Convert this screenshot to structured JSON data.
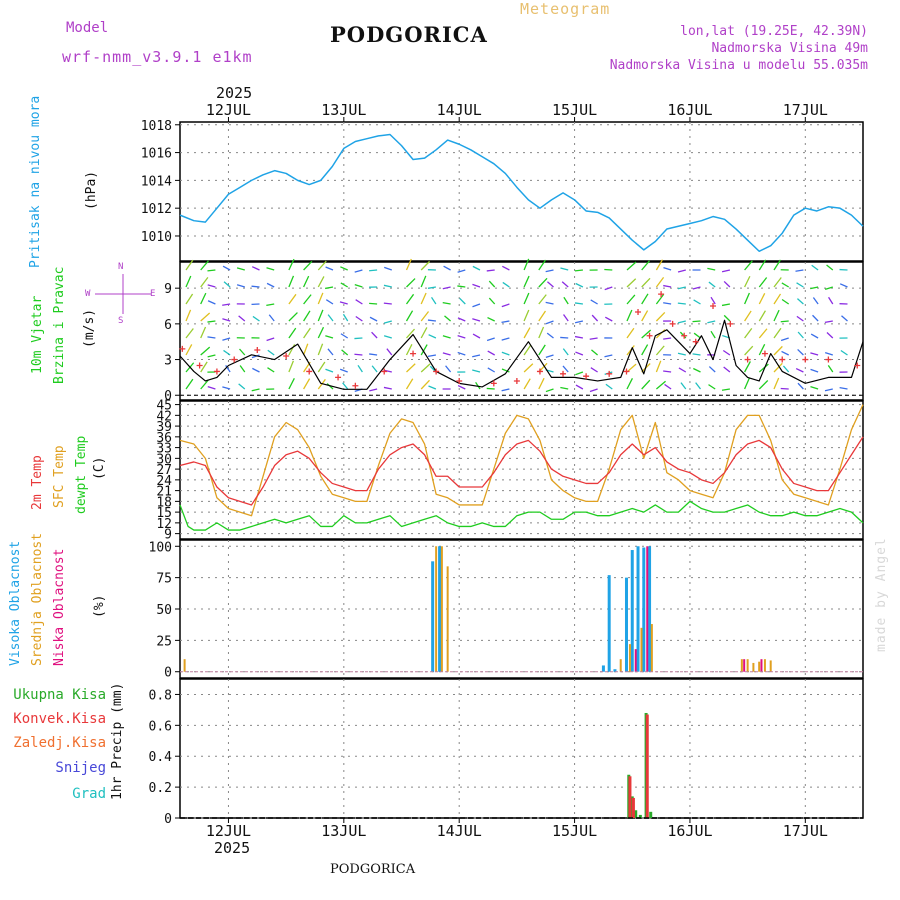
{
  "header": {
    "model_label": "Model",
    "model_name": "wrf-nmm_v3.9.1 e1km",
    "title": "PODGORICA",
    "meteogram": "Meteogram",
    "lonlat": "lon,lat (19.25E, 42.39N)",
    "elevation": "Nadmorska Visina 49m",
    "model_elevation": "Nadmorska Visina u modelu 55.035m",
    "year": "2025",
    "footer_title": "PODGORICA",
    "credit": "made by Angel"
  },
  "colors": {
    "pressure": "#1fa3e6",
    "temp2m": "#e8383a",
    "sfc_temp": "#e0a020",
    "dewpoint": "#1fcc1f",
    "wind_speed": "#000000",
    "gust": "#e8383a",
    "high_cloud": "#1fa3e6",
    "mid_cloud": "#e0a020",
    "low_cloud": "#e0107f",
    "total_precip": "#2aaa2a",
    "conv_precip": "#e8383a",
    "freezing": "#f07030",
    "snow": "#4848d8",
    "hail": "#20c0c0",
    "header_purple": "#b040c8",
    "meteogram_gold": "#e8c070"
  },
  "days": [
    "12JUL",
    "13JUL",
    "14JUL",
    "15JUL",
    "16JUL",
    "17JUL"
  ],
  "panels": {
    "pressure": {
      "labels": [
        "Pritisak na nivou mora"
      ],
      "unit": "(hPa)",
      "ticks": [
        "1010",
        "1012",
        "1014",
        "1016",
        "1018"
      ]
    },
    "wind": {
      "labels": [
        "10m Vjetar",
        "Brzina i Pravac"
      ],
      "unit": "(m/s)",
      "compass": {
        "n": "N",
        "e": "E",
        "w": "W",
        "s": "S"
      },
      "ticks": [
        "0",
        "3",
        "6",
        "9"
      ]
    },
    "temp": {
      "labels": [
        "2m Temp",
        "SFC Temp",
        "dewpt Temp"
      ],
      "unit": "(C)",
      "ticks": [
        "9",
        "12",
        "15",
        "18",
        "21",
        "24",
        "27",
        "30",
        "33",
        "36",
        "39",
        "42",
        "45"
      ]
    },
    "cloud": {
      "labels": [
        "Visoka Oblacnost",
        "Srednja Oblacnost",
        "Niska Oblacnost"
      ],
      "unit": "(%)",
      "ticks": [
        "0",
        "25",
        "50",
        "75",
        "100"
      ]
    },
    "precip": {
      "labels": [
        "Ukupna Kisa",
        "Konvek.Kisa",
        "Zaledj.Kisa",
        "Snijeg",
        "Grad"
      ],
      "unit": "1hr Precip (mm)",
      "ticks": [
        "0",
        "0.2",
        "0.4",
        "0.6",
        "0.8"
      ]
    }
  },
  "chart_data": [
    {
      "type": "line",
      "name": "pressure",
      "xlim": [
        11.58,
        17.5
      ],
      "ylim": [
        1008.2,
        1018.2
      ],
      "series": [
        {
          "x": [
            11.58,
            11.7,
            11.8,
            11.9,
            12.0,
            12.1,
            12.2,
            12.3,
            12.4,
            12.5,
            12.6,
            12.7,
            12.8,
            12.9,
            13.0,
            13.1,
            13.2,
            13.3,
            13.4,
            13.5,
            13.6,
            13.7,
            13.8,
            13.9,
            14.0,
            14.1,
            14.2,
            14.3,
            14.4,
            14.5,
            14.6,
            14.7,
            14.8,
            14.9,
            15.0,
            15.1,
            15.2,
            15.3,
            15.4,
            15.5,
            15.6,
            15.7,
            15.8,
            15.9,
            16.0,
            16.1,
            16.2,
            16.3,
            16.4,
            16.5,
            16.6,
            16.7,
            16.8,
            16.9,
            17.0,
            17.1,
            17.2,
            17.3,
            17.4,
            17.5
          ],
          "values": [
            1011.5,
            1011.1,
            1011.0,
            1012.0,
            1013.0,
            1013.5,
            1014.0,
            1014.4,
            1014.7,
            1014.5,
            1014.0,
            1013.7,
            1014.0,
            1015.0,
            1016.3,
            1016.8,
            1017.0,
            1017.2,
            1017.3,
            1016.5,
            1015.5,
            1015.6,
            1016.2,
            1016.9,
            1016.6,
            1016.2,
            1015.7,
            1015.2,
            1014.5,
            1013.5,
            1012.6,
            1012.0,
            1012.6,
            1013.1,
            1012.6,
            1011.8,
            1011.7,
            1011.3,
            1010.5,
            1009.7,
            1009.0,
            1009.6,
            1010.5,
            1010.7,
            1010.9,
            1011.1,
            1011.4,
            1011.2,
            1010.5,
            1009.7,
            1008.9,
            1009.3,
            1010.2,
            1011.5,
            1012.0,
            1011.8,
            1012.1,
            1012.0,
            1011.5,
            1010.7
          ]
        }
      ]
    },
    {
      "type": "line",
      "name": "wind",
      "xlim": [
        11.58,
        17.5
      ],
      "ylim": [
        -0.4,
        11.2
      ],
      "series": [
        {
          "name": "speed",
          "x": [
            11.58,
            11.7,
            11.8,
            11.9,
            12.0,
            12.2,
            12.4,
            12.6,
            12.8,
            13.0,
            13.2,
            13.4,
            13.6,
            13.8,
            14.0,
            14.2,
            14.4,
            14.6,
            14.8,
            15.0,
            15.2,
            15.4,
            15.5,
            15.6,
            15.7,
            15.8,
            15.9,
            16.0,
            16.1,
            16.2,
            16.3,
            16.4,
            16.5,
            16.6,
            16.7,
            16.8,
            17.0,
            17.2,
            17.4,
            17.5
          ],
          "values": [
            3.3,
            2.0,
            1.2,
            1.5,
            2.5,
            3.4,
            3.0,
            4.3,
            1.0,
            0.5,
            0.5,
            3.0,
            5.1,
            2.0,
            1.0,
            0.7,
            1.8,
            4.5,
            1.5,
            1.5,
            1.2,
            1.5,
            4.0,
            1.8,
            5.0,
            5.5,
            4.5,
            3.5,
            5.0,
            3.0,
            6.3,
            2.5,
            1.5,
            1.2,
            3.5,
            2.0,
            1.0,
            1.5,
            1.5,
            4.5
          ]
        },
        {
          "name": "gust",
          "x": [
            11.6,
            11.75,
            11.9,
            12.05,
            12.25,
            12.5,
            12.7,
            12.95,
            13.1,
            13.35,
            13.6,
            13.8,
            14.0,
            14.3,
            14.5,
            14.7,
            14.9,
            15.1,
            15.3,
            15.45,
            15.55,
            15.65,
            15.75,
            15.85,
            15.95,
            16.05,
            16.2,
            16.35,
            16.5,
            16.65,
            16.8,
            17.0,
            17.2,
            17.45
          ],
          "values": [
            3.9,
            2.5,
            2.0,
            3.0,
            3.8,
            3.3,
            2.0,
            1.5,
            0.8,
            2.0,
            3.5,
            2.0,
            1.2,
            1.0,
            1.2,
            2.0,
            1.8,
            1.6,
            1.8,
            2.0,
            7.0,
            5.0,
            8.5,
            6.0,
            5.0,
            4.5,
            7.5,
            6.0,
            3.0,
            3.5,
            3.0,
            3.0,
            3.0,
            2.5
          ]
        }
      ]
    },
    {
      "type": "line",
      "name": "temperature",
      "xlim": [
        11.58,
        17.5
      ],
      "ylim": [
        7.5,
        46
      ],
      "series": [
        {
          "name": "2m Temp",
          "x": [
            11.58,
            11.7,
            11.8,
            11.9,
            12.0,
            12.1,
            12.2,
            12.3,
            12.4,
            12.5,
            12.6,
            12.7,
            12.8,
            12.9,
            13.0,
            13.1,
            13.2,
            13.3,
            13.4,
            13.5,
            13.6,
            13.7,
            13.8,
            13.9,
            14.0,
            14.1,
            14.2,
            14.3,
            14.4,
            14.5,
            14.6,
            14.7,
            14.8,
            14.9,
            15.0,
            15.1,
            15.2,
            15.3,
            15.4,
            15.5,
            15.6,
            15.7,
            15.8,
            15.9,
            16.0,
            16.1,
            16.2,
            16.3,
            16.4,
            16.5,
            16.6,
            16.7,
            16.8,
            16.9,
            17.0,
            17.1,
            17.2,
            17.3,
            17.4,
            17.5
          ],
          "values": [
            28,
            29,
            28,
            22,
            19,
            18,
            17,
            22,
            28,
            31,
            32,
            30,
            26,
            23,
            22,
            21,
            21,
            27,
            31,
            33,
            34,
            31,
            25,
            25,
            22,
            22,
            22,
            26,
            31,
            34,
            35,
            32,
            27,
            25,
            24,
            23,
            23,
            26,
            31,
            34,
            31,
            33,
            29,
            27,
            26,
            24,
            23,
            26,
            31,
            34,
            35,
            33,
            27,
            23,
            22,
            21,
            21,
            26,
            31,
            36
          ]
        },
        {
          "name": "SFC Temp",
          "x": [
            11.58,
            11.7,
            11.8,
            11.9,
            12.0,
            12.1,
            12.2,
            12.3,
            12.4,
            12.5,
            12.6,
            12.7,
            12.8,
            12.9,
            13.0,
            13.1,
            13.2,
            13.3,
            13.4,
            13.5,
            13.6,
            13.7,
            13.8,
            13.9,
            14.0,
            14.1,
            14.2,
            14.3,
            14.4,
            14.5,
            14.6,
            14.7,
            14.8,
            14.9,
            15.0,
            15.1,
            15.2,
            15.3,
            15.4,
            15.5,
            15.6,
            15.7,
            15.8,
            15.9,
            16.0,
            16.1,
            16.2,
            16.3,
            16.4,
            16.5,
            16.6,
            16.7,
            16.8,
            16.9,
            17.0,
            17.1,
            17.2,
            17.3,
            17.4,
            17.5
          ],
          "values": [
            35,
            34,
            30,
            19,
            16,
            15,
            14,
            25,
            36,
            40,
            38,
            33,
            25,
            20,
            19,
            18,
            18,
            28,
            37,
            41,
            40,
            34,
            20,
            19,
            17,
            17,
            17,
            27,
            37,
            42,
            41,
            35,
            24,
            21,
            19,
            18,
            18,
            27,
            38,
            42,
            30,
            40,
            26,
            24,
            21,
            20,
            19,
            26,
            38,
            42,
            42,
            35,
            24,
            20,
            19,
            18,
            17,
            27,
            38,
            45
          ]
        },
        {
          "name": "dewpt Temp",
          "x": [
            11.58,
            11.65,
            11.7,
            11.8,
            11.9,
            12.0,
            12.1,
            12.2,
            12.3,
            12.4,
            12.5,
            12.6,
            12.7,
            12.8,
            12.9,
            13.0,
            13.1,
            13.2,
            13.3,
            13.4,
            13.5,
            13.6,
            13.7,
            13.8,
            13.9,
            14.0,
            14.1,
            14.2,
            14.3,
            14.4,
            14.5,
            14.6,
            14.7,
            14.8,
            14.9,
            15.0,
            15.1,
            15.2,
            15.3,
            15.4,
            15.5,
            15.6,
            15.7,
            15.8,
            15.9,
            16.0,
            16.1,
            16.2,
            16.3,
            16.4,
            16.5,
            16.6,
            16.7,
            16.8,
            16.9,
            17.0,
            17.1,
            17.2,
            17.3,
            17.4,
            17.5
          ],
          "values": [
            17,
            11,
            10,
            10,
            12,
            10,
            10,
            11,
            12,
            13,
            12,
            13,
            14,
            11,
            11,
            14,
            12,
            12,
            13,
            14,
            11,
            12,
            13,
            14,
            12,
            11,
            11,
            12,
            11,
            11,
            14,
            15,
            15,
            13,
            13,
            15,
            15,
            14,
            14,
            15,
            16,
            15,
            17,
            15,
            15,
            18,
            16,
            15,
            15,
            16,
            17,
            15,
            14,
            14,
            15,
            14,
            14,
            15,
            16,
            15,
            12
          ]
        }
      ]
    },
    {
      "type": "bar",
      "name": "cloud",
      "xlim": [
        11.58,
        17.5
      ],
      "ylim": [
        -5,
        105
      ],
      "series": [
        {
          "name": "Visoka Oblacnost",
          "x": [
            13.77,
            13.83,
            15.25,
            15.3,
            15.35,
            15.45,
            15.5,
            15.55,
            15.6,
            15.65
          ],
          "values": [
            88,
            100,
            5,
            77,
            2,
            75,
            97,
            100,
            99,
            100
          ]
        },
        {
          "name": "Srednja Oblacnost",
          "x": [
            11.62,
            13.8,
            13.85,
            13.9,
            15.4,
            15.48,
            15.58,
            15.67,
            16.45,
            16.5,
            16.55,
            16.6,
            16.65,
            16.7
          ],
          "values": [
            10,
            100,
            100,
            84,
            10,
            22,
            35,
            38,
            10,
            10,
            7,
            8,
            10,
            9
          ]
        },
        {
          "name": "Niska Oblacnost",
          "x": [
            15.53,
            15.63,
            16.47,
            16.62
          ],
          "values": [
            18,
            100,
            10,
            10
          ]
        }
      ]
    },
    {
      "type": "bar",
      "name": "precipitation",
      "xlim": [
        11.58,
        17.5
      ],
      "ylim": [
        0,
        0.9
      ],
      "series": [
        {
          "name": "Ukupna Kisa",
          "x": [
            15.47,
            15.5,
            15.53,
            15.57,
            15.62,
            15.66
          ],
          "values": [
            0.28,
            0.14,
            0.05,
            0.02,
            0.68,
            0.04
          ]
        },
        {
          "name": "Konvek.Kisa",
          "x": [
            15.48,
            15.51,
            15.63
          ],
          "values": [
            0.27,
            0.13,
            0.67
          ]
        }
      ]
    }
  ]
}
